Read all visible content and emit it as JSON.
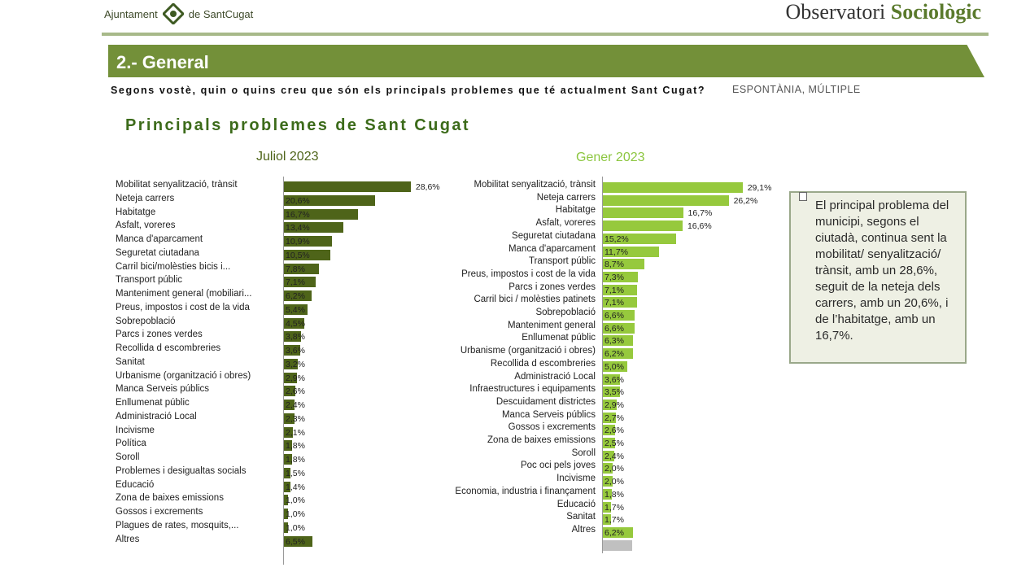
{
  "header": {
    "logo_left_a": "Ajuntament",
    "logo_left_b": "de SantCugat",
    "logo_right_a": "Observatori",
    "logo_right_b": "Sociològic"
  },
  "section": {
    "title": "2.- General",
    "question": "Segons vostè, quin o quins creu que són els principals problemes que té actualment Sant Cugat?",
    "question_tag": "ESPONTÀNIA, MÚLTIPLE"
  },
  "colors": {
    "dark_green": "#4e6419",
    "light_green": "#96c93d",
    "grey": "#c0c0c0",
    "brand": "#739039"
  },
  "chart_data": [
    {
      "type": "bar",
      "orientation": "horizontal",
      "title": "Principals problemes de Sant Cugat",
      "subtitle": "Juliol 2023",
      "unit": "%",
      "categories": [
        "Mobilitat senyalització, trànsit",
        "Neteja carrers",
        "Habitatge",
        "Asfalt, voreres",
        "Manca d'aparcament",
        "Seguretat ciutadana",
        "Carril bici/molèsties bicis i...",
        "Transport públic",
        "Manteniment general (mobiliari...",
        "Preus, impostos i cost de la vida",
        "Sobrepoblació",
        "Parcs i zones verdes",
        "Recollida d escombreries",
        "Sanitat",
        "Urbanisme (organització i obres)",
        "Manca Serveis públics",
        "Enllumenat públic",
        "Administració Local",
        "Incivisme",
        "Política",
        "Soroll",
        "Problemes i desigualtas socials",
        "Educació",
        "Zona de baixes emissions",
        "Gossos i excrements",
        "Plagues de rates, mosquits,...",
        "Altres"
      ],
      "values": [
        28.6,
        20.6,
        16.7,
        13.4,
        10.9,
        10.5,
        7.8,
        7.1,
        6.2,
        5.4,
        4.5,
        3.8,
        3.6,
        3.2,
        2.9,
        2.6,
        2.4,
        2.3,
        2.1,
        1.8,
        1.8,
        1.5,
        1.4,
        1.0,
        1.0,
        1.0,
        6.5
      ],
      "labels": [
        "28,6%",
        "20,6%",
        "16,7%",
        "13,4%",
        "10,9%",
        "10,5%",
        "7,8%",
        "7,1%",
        "6,2%",
        "5,4%",
        "4,5%",
        "3,8%",
        "3,6%",
        "3,2%",
        "2,9%",
        "2,6%",
        "2,4%",
        "2,3%",
        "2,1%",
        "1,8%",
        "1,8%",
        "1,5%",
        "1,4%",
        "1,0%",
        "1,0%",
        "1,0%",
        "6,5%"
      ],
      "color": "#4e6419"
    },
    {
      "type": "bar",
      "orientation": "horizontal",
      "subtitle": "Gener 2023",
      "unit": "%",
      "categories": [
        "Mobilitat senyalització, trànsit",
        "Neteja carrers",
        "Habitatge",
        "Asfalt, voreres",
        "Seguretat ciutadana",
        "Manca d'aparcament",
        "Transport públic",
        "Preus, impostos i cost de la vida",
        "Parcs i zones verdes",
        "Carril bici / molèsties patinets",
        "Sobrepoblació",
        "Manteniment general",
        "Enllumenat públic",
        "Urbanisme (organització i obres)",
        "Recollida d escombreries",
        "Administració Local",
        "Infraestructures i equipaments",
        "Descuidament districtes",
        "Manca Serveis públics",
        "Gossos i excrements",
        "Zona de baixes emissions",
        "Soroll",
        "Poc oci pels joves",
        "Incivisme",
        "Economia, industria i finançament",
        "Educació",
        "Sanitat",
        "Altres"
      ],
      "values": [
        29.1,
        26.2,
        16.7,
        16.6,
        15.2,
        11.7,
        8.7,
        7.3,
        7.1,
        7.1,
        6.6,
        6.6,
        6.3,
        6.2,
        5.0,
        3.6,
        3.5,
        2.9,
        2.7,
        2.6,
        2.5,
        2.4,
        2.0,
        2.0,
        1.8,
        1.7,
        1.7,
        6.2
      ],
      "labels": [
        "29,1%",
        "26,2%",
        "16,7%",
        "16,6%",
        "15,2%",
        "11,7%",
        "8,7%",
        "7,3%",
        "7,1%",
        "7,1%",
        "6,6%",
        "6,6%",
        "6,3%",
        "6,2%",
        "5,0%",
        "3,6%",
        "3,5%",
        "2,9%",
        "2,7%",
        "2,6%",
        "2,5%",
        "2,4%",
        "2,0%",
        "2,0%",
        "1,8%",
        "1,7%",
        "1,7%",
        "6,2%"
      ],
      "color": "#96c93d"
    }
  ],
  "note": {
    "text": "El principal problema del municipi, segons el ciutadà, continua sent la mobilitat/ senyalització/ trànsit, amb un 28,6%, seguit de la neteja dels carrers, amb un 20,6%, i de l’habitatge, amb un 16,7%."
  }
}
